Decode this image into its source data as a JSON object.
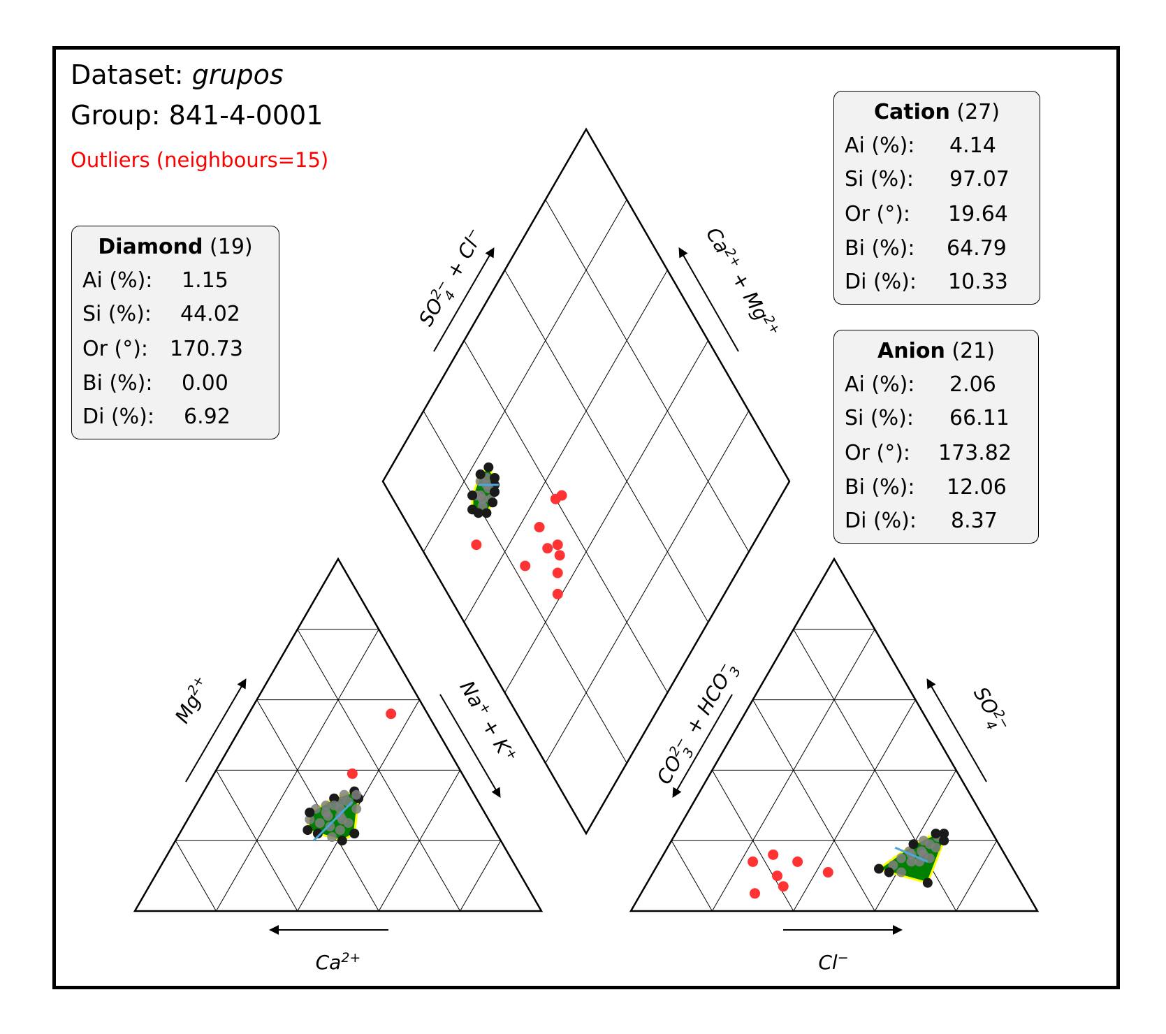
{
  "header": {
    "dataset_label": "Dataset:",
    "dataset_name": "grupos",
    "group_label": "Group: 841-4-0001",
    "outliers_label": "Outliers (neighbours=15)"
  },
  "colors": {
    "outlier": "#ff3333",
    "point": "#1a1a1a",
    "point_inner": "#808080",
    "hull_fill": "#008000",
    "hull_edge": "#ffff00",
    "trend_line": "#4da6d9",
    "panel_bg": "#f2f2f2"
  },
  "stats": {
    "diamond": {
      "title": "Diamond",
      "count": "(19)",
      "rows": [
        {
          "label": "Ai (%):",
          "value": "1.15"
        },
        {
          "label": "Si (%):",
          "value": "44.02"
        },
        {
          "label": "Or (°):",
          "value": "170.73"
        },
        {
          "label": "Bi (%):",
          "value": "0.00"
        },
        {
          "label": "Di (%):",
          "value": "6.92"
        }
      ]
    },
    "cation": {
      "title": "Cation",
      "count": "(27)",
      "rows": [
        {
          "label": "Ai (%):",
          "value": "4.14"
        },
        {
          "label": "Si (%):",
          "value": "97.07"
        },
        {
          "label": "Or (°):",
          "value": "19.64"
        },
        {
          "label": "Bi (%):",
          "value": "64.79"
        },
        {
          "label": "Di (%):",
          "value": "10.33"
        }
      ]
    },
    "anion": {
      "title": "Anion",
      "count": "(21)",
      "rows": [
        {
          "label": "Ai (%):",
          "value": "2.06"
        },
        {
          "label": "Si (%):",
          "value": "66.11"
        },
        {
          "label": "Or (°):",
          "value": "173.82"
        },
        {
          "label": "Bi (%):",
          "value": "12.06"
        },
        {
          "label": "Di (%):",
          "value": "8.37"
        }
      ]
    }
  },
  "chart_data": {
    "type": "scatter",
    "subtype": "piper-diagram",
    "axis_labels": {
      "cation_bottom": "Ca2+",
      "cation_left": "Mg2+",
      "cation_right": "Na+ + K+",
      "anion_bottom": "Cl−",
      "anion_left": "CO32− + HCO3−",
      "anion_right": "SO42−",
      "diamond_left": "SO42− + Cl−",
      "diamond_right": "Ca2+ + Mg2+"
    },
    "units": "percent",
    "grid_step": 20,
    "cation": {
      "description_axes": [
        "Mg %",
        "Na+K %"
      ],
      "group": [
        [
          20,
          41
        ],
        [
          23,
          39
        ],
        [
          26,
          38
        ],
        [
          27,
          37
        ],
        [
          29,
          36
        ],
        [
          31,
          35
        ],
        [
          33,
          35
        ],
        [
          32,
          33
        ],
        [
          30,
          32
        ],
        [
          28,
          33
        ],
        [
          25,
          33
        ],
        [
          22,
          34
        ],
        [
          23,
          31
        ],
        [
          26,
          30
        ],
        [
          29,
          30
        ],
        [
          28,
          29
        ],
        [
          24,
          36
        ],
        [
          27,
          34
        ],
        [
          30,
          34
        ],
        [
          34,
          37
        ],
        [
          21,
          38
        ],
        [
          25,
          40
        ],
        [
          31,
          37
        ],
        [
          32,
          39
        ],
        [
          22,
          43
        ],
        [
          29,
          40
        ],
        [
          33,
          38
        ]
      ],
      "outliers": [
        [
          39,
          34
        ],
        [
          56,
          35
        ]
      ],
      "trend": [
        [
          20,
          34
        ],
        [
          31,
          38
        ]
      ]
    },
    "anion": {
      "description_axes": [
        "SO4 %",
        "Cl %"
      ],
      "group": [
        [
          11,
          61
        ],
        [
          14,
          62
        ],
        [
          16,
          64
        ],
        [
          17,
          63
        ],
        [
          19,
          64
        ],
        [
          21,
          65
        ],
        [
          22,
          66
        ],
        [
          20,
          62
        ],
        [
          17,
          60
        ],
        [
          15,
          59
        ],
        [
          13,
          58
        ],
        [
          12,
          55
        ],
        [
          8,
          69
        ],
        [
          15,
          66
        ],
        [
          18,
          66
        ],
        [
          20,
          67
        ],
        [
          22,
          64
        ],
        [
          14,
          64
        ],
        [
          16,
          61
        ],
        [
          19,
          60
        ],
        [
          11,
          58
        ]
      ],
      "outliers": [
        [
          16,
          27
        ],
        [
          14,
          34
        ],
        [
          10,
          31
        ],
        [
          11,
          43
        ],
        [
          7,
          34
        ],
        [
          5,
          28
        ],
        [
          14,
          23
        ]
      ],
      "trend": [
        [
          18,
          56
        ],
        [
          14,
          66
        ]
      ]
    },
    "diamond": {
      "description_axes": [
        "SO4+Cl %",
        "Ca+Mg %"
      ],
      "group": [
        [
          74,
          18
        ],
        [
          76,
          28
        ],
        [
          76,
          24
        ],
        [
          75,
          26
        ],
        [
          72,
          27
        ],
        [
          73,
          22
        ],
        [
          71,
          24
        ],
        [
          72,
          21
        ],
        [
          70,
          24
        ],
        [
          75,
          21
        ],
        [
          73,
          25
        ],
        [
          74,
          22
        ],
        [
          70,
          21
        ],
        [
          77,
          25
        ],
        [
          76,
          20
        ],
        [
          71,
          26
        ],
        [
          73,
          28
        ],
        [
          74,
          25
        ],
        [
          72,
          19
        ]
      ],
      "outliers": [
        [
          68,
          14
        ],
        [
          55,
          32
        ],
        [
          46,
          33
        ],
        [
          53,
          23
        ],
        [
          50,
          31
        ],
        [
          48,
          34
        ],
        [
          44,
          30
        ],
        [
          41,
          27
        ],
        [
          54,
          42
        ],
        [
          55,
          40
        ]
      ],
      "trend": [
        [
          76,
          23
        ],
        [
          71,
          28
        ]
      ]
    }
  }
}
